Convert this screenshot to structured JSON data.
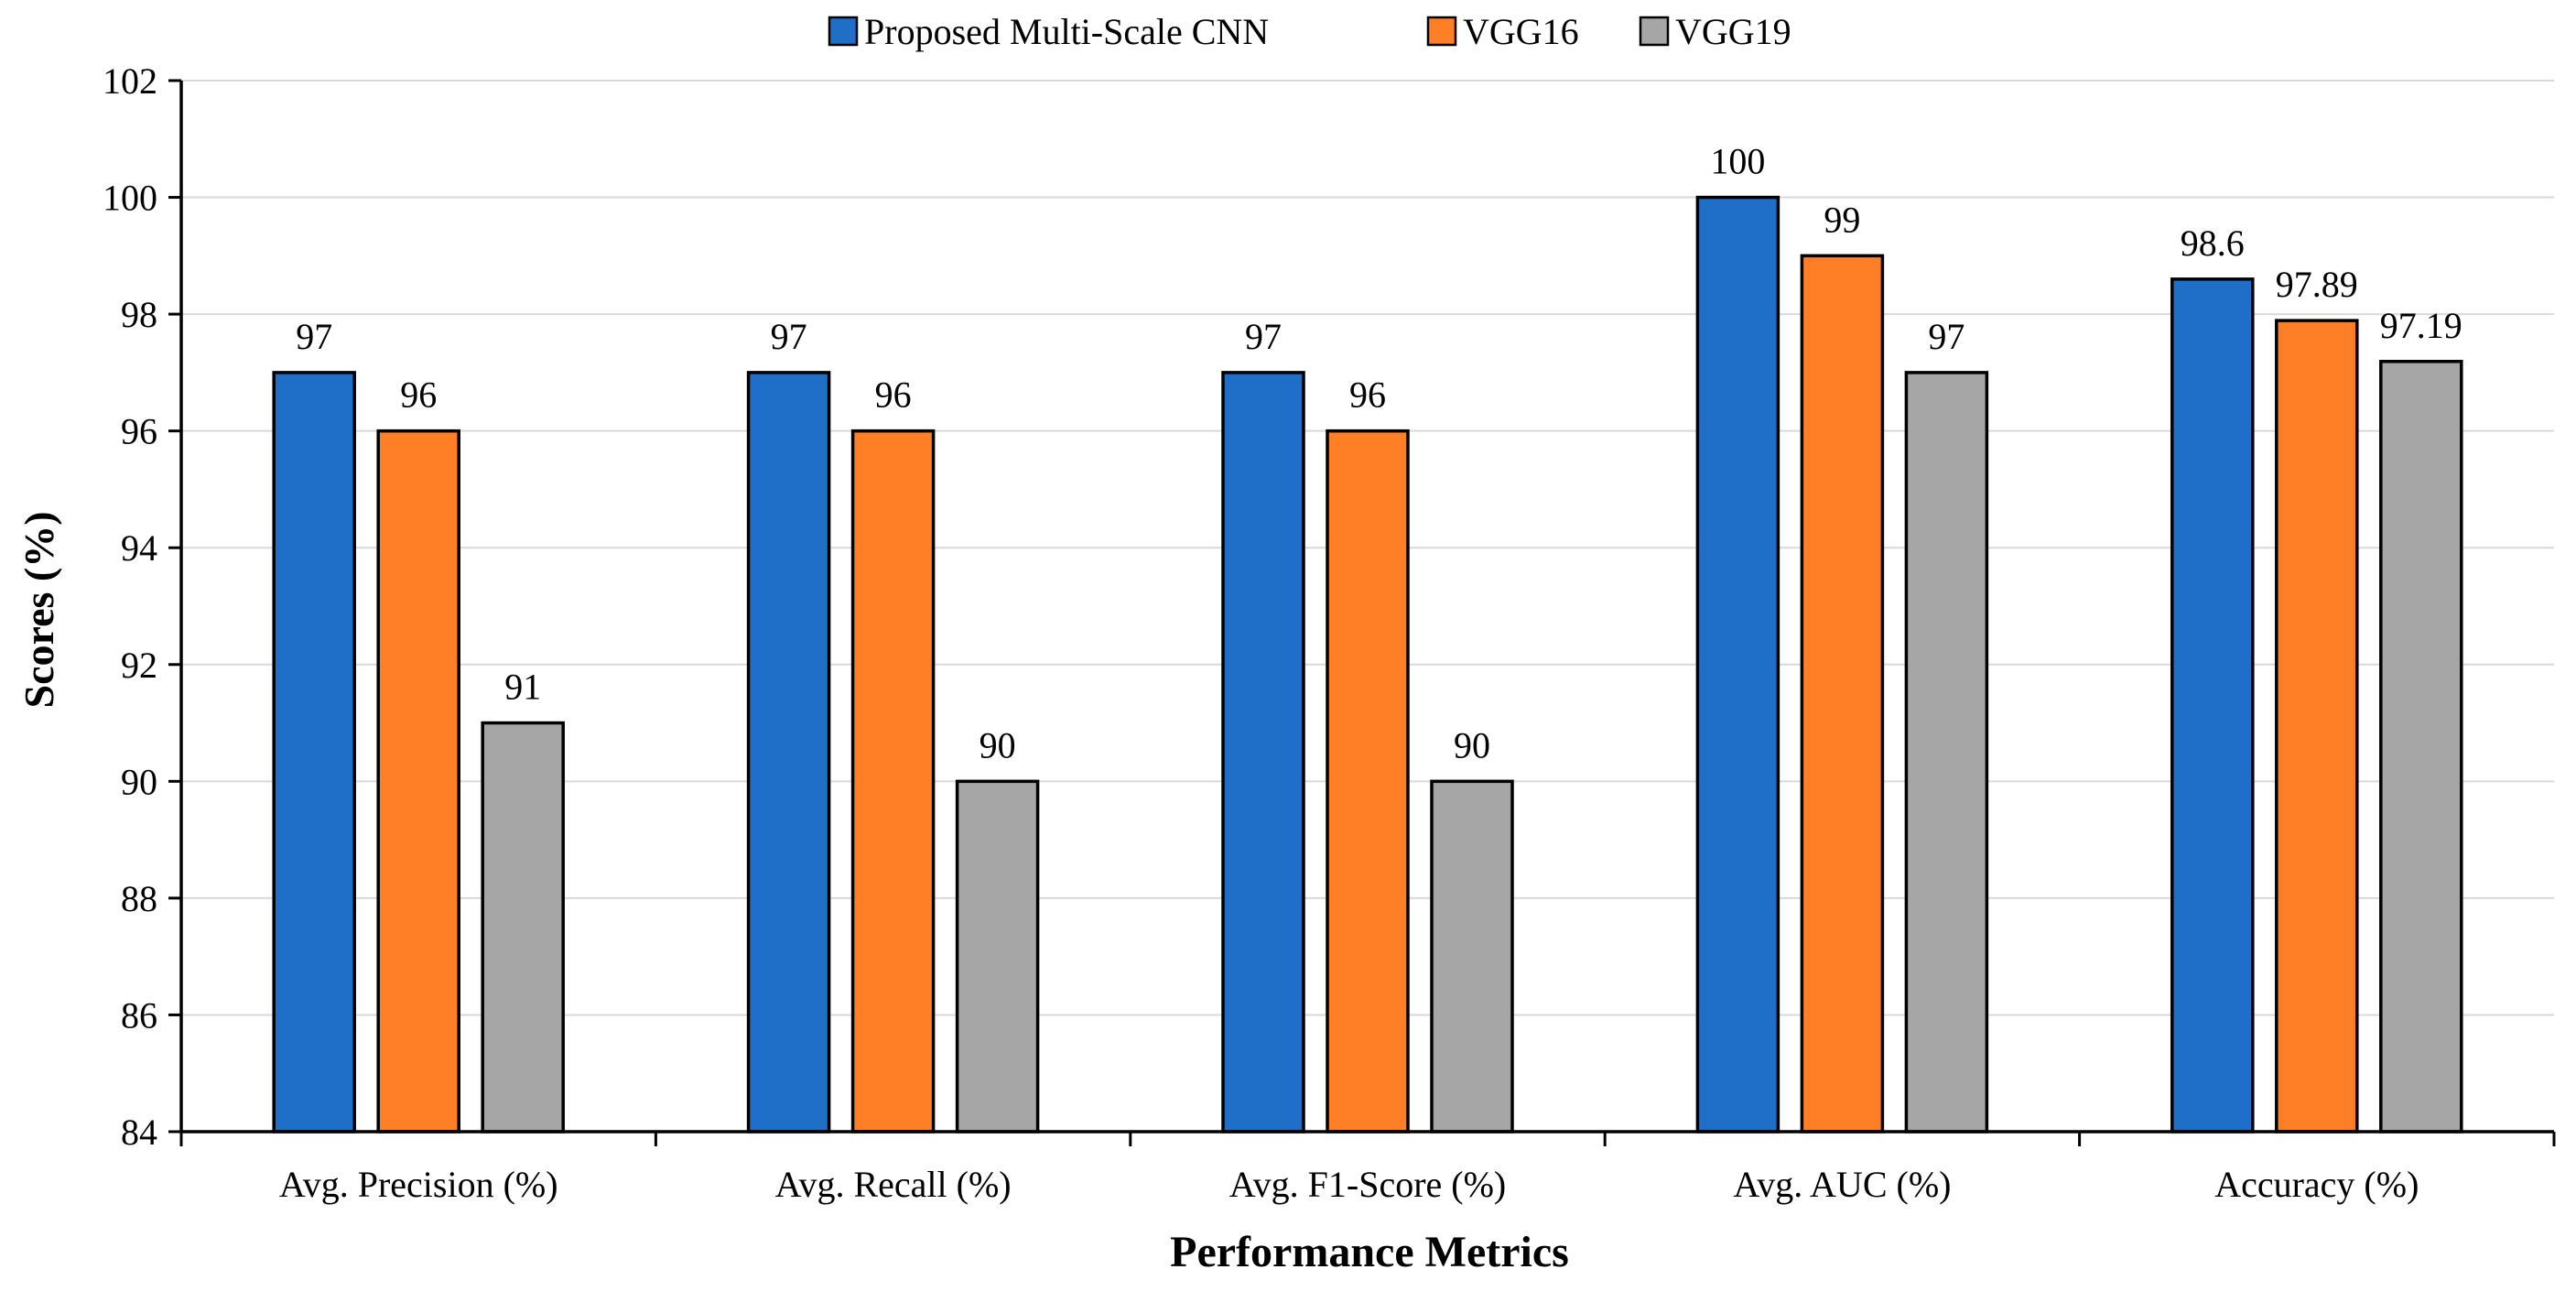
{
  "chart_data": {
    "type": "bar",
    "title": "",
    "xlabel": "Performance Metrics",
    "ylabel": "Scores (%)",
    "categories": [
      "Avg. Precision (%)",
      "Avg. Recall (%)",
      "Avg. F1-Score (%)",
      "Avg. AUC (%)",
      "Accuracy (%)"
    ],
    "series": [
      {
        "name": "Proposed Multi-Scale CNN",
        "color": "#1f6fc9",
        "values": [
          97,
          97,
          97,
          100,
          98.6
        ],
        "labels": [
          "97",
          "97",
          "97",
          "100",
          "98.6"
        ]
      },
      {
        "name": "VGG16",
        "color": "#ff7f27",
        "values": [
          96,
          96,
          96,
          99,
          97.89
        ],
        "labels": [
          "96",
          "96",
          "96",
          "99",
          "97.89"
        ]
      },
      {
        "name": "VGG19",
        "color": "#a6a6a6",
        "values": [
          91,
          90,
          90,
          97,
          97.19
        ],
        "labels": [
          "91",
          "90",
          "90",
          "97",
          "97.19"
        ]
      }
    ],
    "ylim": [
      84,
      102
    ],
    "yticks": [
      "84",
      "86",
      "88",
      "90",
      "92",
      "94",
      "96",
      "98",
      "100",
      "102"
    ],
    "grid": true,
    "legend_position": "top-center"
  }
}
